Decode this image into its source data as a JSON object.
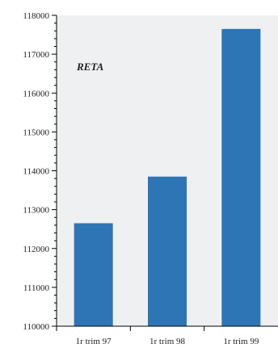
{
  "chart_data": {
    "type": "bar",
    "categories": [
      "1r trim 97",
      "1r trim 98",
      "1r trim 99"
    ],
    "values": [
      112650,
      113850,
      117650
    ],
    "ylim": [
      110000,
      118000
    ],
    "yticks": [
      110000,
      111000,
      112000,
      113000,
      114000,
      115000,
      116000,
      117000,
      118000
    ],
    "annotation": "RETA",
    "title": "",
    "xlabel": "",
    "ylabel": "",
    "grid": false,
    "colors": {
      "bar": "#2e75b6",
      "plot_background": "#eff0f2",
      "axis": "#000000"
    }
  }
}
